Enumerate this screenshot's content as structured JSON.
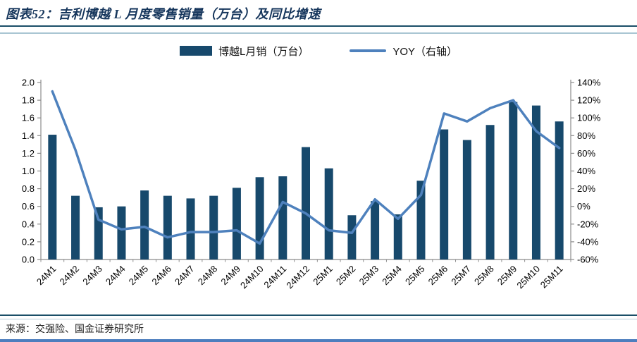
{
  "header": {
    "title": "图表52：吉利博越 L 月度零售销量（万台）及同比增速"
  },
  "legend": {
    "items": [
      {
        "label": "博越L月销（万台）",
        "type": "bar-swatch"
      },
      {
        "label": "YOY（右轴）",
        "type": "line-swatch"
      }
    ]
  },
  "colors": {
    "bar": "#17496C",
    "line": "#4E81BD",
    "axis": "#8C8C8C",
    "tick_text": "#000000",
    "accent_rule_dark": "#1B4F68",
    "accent_rule_light": "#A9C6D3",
    "bottom_edge_line": "#4D7EBE",
    "title_text": "#16365C"
  },
  "chart_data": {
    "type": "combo",
    "title": "吉利博越 L 月度零售销量（万台）及同比增速",
    "categories": [
      "24M1",
      "24M2",
      "24M3",
      "24M4",
      "24M5",
      "24M6",
      "24M7",
      "24M8",
      "24M9",
      "24M10",
      "24M11",
      "24M12",
      "25M1",
      "25M2",
      "25M3",
      "25M4",
      "25M5",
      "25M6",
      "25M7",
      "25M8",
      "25M9",
      "25M10",
      "25M11"
    ],
    "series": [
      {
        "name": "博越L月销（万台）",
        "type": "bar",
        "axis": "left",
        "values": [
          1.41,
          0.72,
          0.59,
          0.6,
          0.78,
          0.72,
          0.69,
          0.72,
          0.81,
          0.93,
          0.94,
          1.27,
          1.03,
          0.5,
          0.66,
          0.51,
          0.89,
          1.47,
          1.35,
          1.52,
          1.78,
          1.74,
          1.56
        ]
      },
      {
        "name": "YOY（右轴）",
        "type": "line",
        "axis": "right",
        "values": [
          130,
          64,
          -15,
          -26,
          -23,
          -35,
          -29,
          -29,
          -27,
          -42,
          5,
          -8,
          -27,
          -30,
          8,
          -14,
          13,
          105,
          96,
          111,
          120,
          85,
          66
        ]
      }
    ],
    "left_axis": {
      "min": 0.0,
      "max": 2.0,
      "step": 0.2,
      "labels": [
        "2.0",
        "1.8",
        "1.6",
        "1.4",
        "1.2",
        "1.0",
        "0.8",
        "0.6",
        "0.4",
        "0.2",
        "0.0"
      ]
    },
    "right_axis": {
      "min": -60,
      "max": 140,
      "step": 20,
      "labels": [
        "140%",
        "120%",
        "100%",
        "80%",
        "60%",
        "40%",
        "20%",
        "0%",
        "-20%",
        "-40%",
        "-60%"
      ],
      "unit": "%"
    },
    "grid": false,
    "legend_position": "top"
  },
  "footer": {
    "source": "来源：交强险、国金证券研究所"
  }
}
